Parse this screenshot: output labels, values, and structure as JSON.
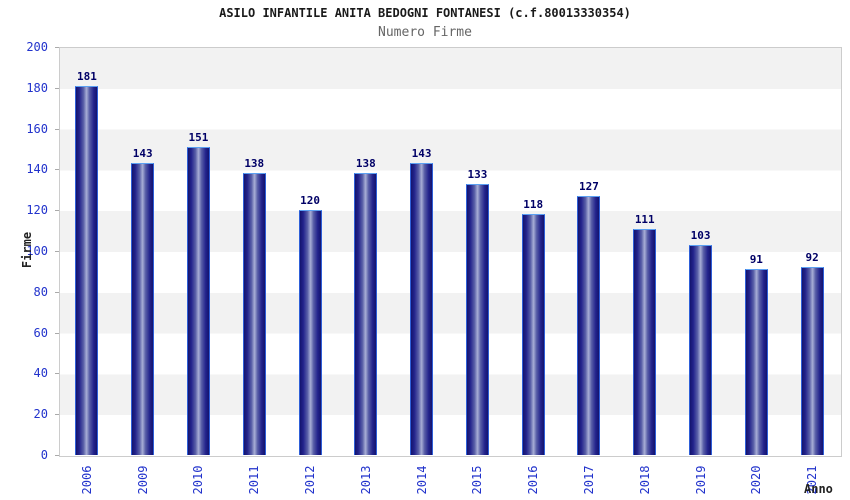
{
  "title": "ASILO INFANTILE ANITA BEDOGNI FONTANESI (c.f.80013330354)",
  "subtitle": "Numero Firme",
  "chart_data": {
    "type": "bar",
    "title": "ASILO INFANTILE ANITA BEDOGNI FONTANESI (c.f.80013330354)",
    "subtitle": "Numero Firme",
    "categories": [
      "2006",
      "2009",
      "2010",
      "2011",
      "2012",
      "2013",
      "2014",
      "2015",
      "2016",
      "2017",
      "2018",
      "2019",
      "2020",
      "2021"
    ],
    "values": [
      181,
      143,
      151,
      138,
      120,
      138,
      143,
      133,
      118,
      127,
      111,
      103,
      91,
      92
    ],
    "xlabel": "Anno",
    "ylabel": "Firme",
    "ylim": [
      0,
      200
    ],
    "ytick_step": 20,
    "ytick_labels": [
      "0",
      "20",
      "40",
      "60",
      "80",
      "100",
      "120",
      "140",
      "160",
      "180",
      "200"
    ],
    "grid": "alternating-horizontal-bands",
    "legend": "none",
    "value_labels_shown": true,
    "colors": {
      "title": "#1a1a1a",
      "subtitle": "#666666",
      "axis_tick": "#2233cc",
      "value_label": "#000066",
      "axis_title": "#222222",
      "bar_border": "#2e5fd8",
      "bar_border_top": "#5ba0f2",
      "bar_dark": "#14146e",
      "bar_mid": "#23238c",
      "bar_light": "#a8aed6",
      "band_gray": "#f2f2f2",
      "band_white": "#ffffff",
      "plot_border": "#cccccc"
    }
  }
}
